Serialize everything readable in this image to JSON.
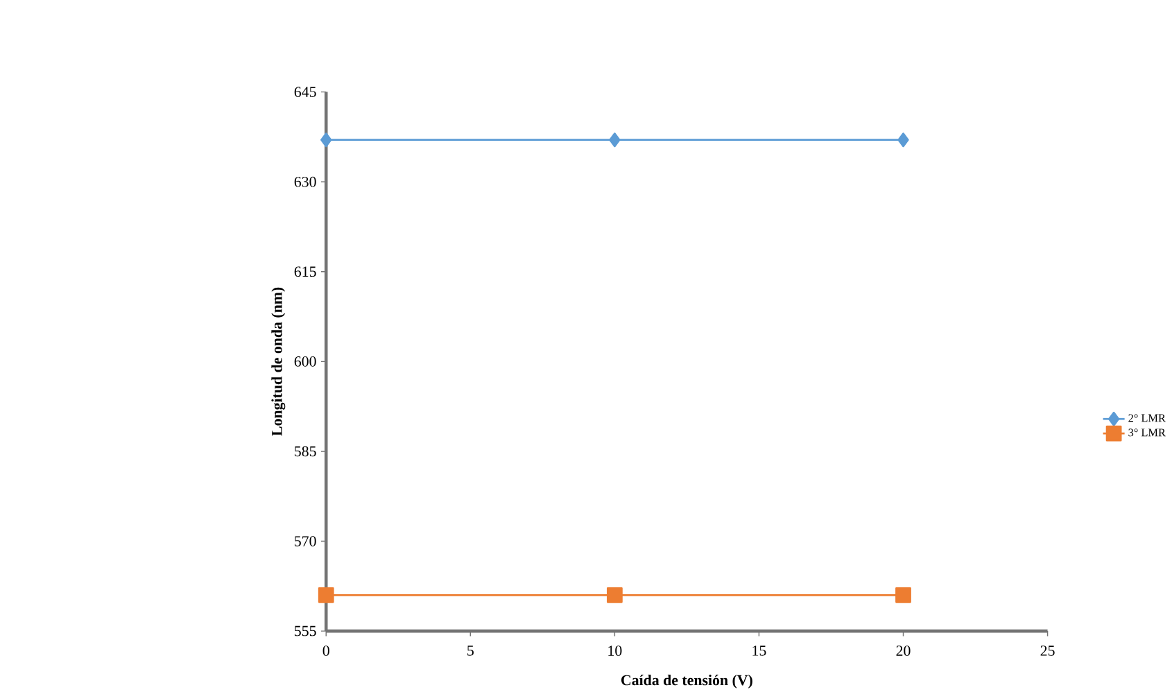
{
  "chart_data": {
    "type": "line",
    "xlabel": "Caída de tensión (V)",
    "ylabel": "Longitud de onda (nm)",
    "x": [
      0,
      10,
      20
    ],
    "series": [
      {
        "name": "2° LMR",
        "color": "#5b9bd5",
        "marker": "diamond",
        "values": [
          637,
          637,
          637
        ]
      },
      {
        "name": "3° LMR",
        "color": "#ed7d31",
        "marker": "square",
        "values": [
          561,
          561,
          561
        ]
      }
    ],
    "xlim": [
      0,
      25
    ],
    "xticks": [
      0,
      5,
      10,
      15,
      20,
      25
    ],
    "ylim": [
      555,
      645
    ],
    "yticks": [
      555,
      570,
      585,
      600,
      615,
      630,
      645
    ],
    "grid": false,
    "legend": "right"
  }
}
